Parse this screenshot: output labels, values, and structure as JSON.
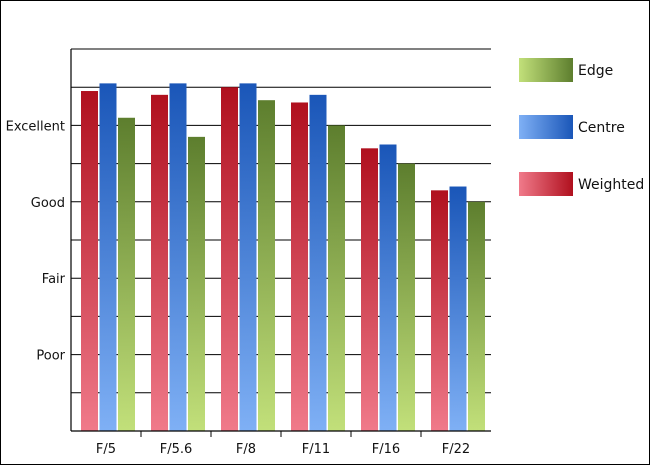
{
  "chart_data": {
    "type": "bar",
    "categories": [
      "F/5",
      "F/5.6",
      "F/8",
      "F/11",
      "F/16",
      "F/22"
    ],
    "y_tick_labels": [
      {
        "label": "Poor",
        "value": 1
      },
      {
        "label": "Fair",
        "value": 2
      },
      {
        "label": "Good",
        "value": 3
      },
      {
        "label": "Excellent",
        "value": 4
      }
    ],
    "ylim": [
      0,
      5
    ],
    "minor_grid_step": 0.5,
    "series": [
      {
        "name": "Weighted",
        "values": [
          4.45,
          4.4,
          4.5,
          4.3,
          3.7,
          3.15
        ],
        "color_light": "#f07a8a",
        "color_dark": "#b0101e"
      },
      {
        "name": "Centre",
        "values": [
          4.55,
          4.55,
          4.55,
          4.4,
          3.75,
          3.2
        ],
        "color_light": "#7fb0f5",
        "color_dark": "#1a56b8"
      },
      {
        "name": "Edge",
        "values": [
          4.1,
          3.85,
          4.33,
          4.0,
          3.5,
          3.0
        ],
        "color_light": "#c2e07a",
        "color_dark": "#5d7e2e"
      }
    ],
    "legend_order": [
      "Edge",
      "Centre",
      "Weighted"
    ],
    "legend_position": "right",
    "grid": true
  }
}
